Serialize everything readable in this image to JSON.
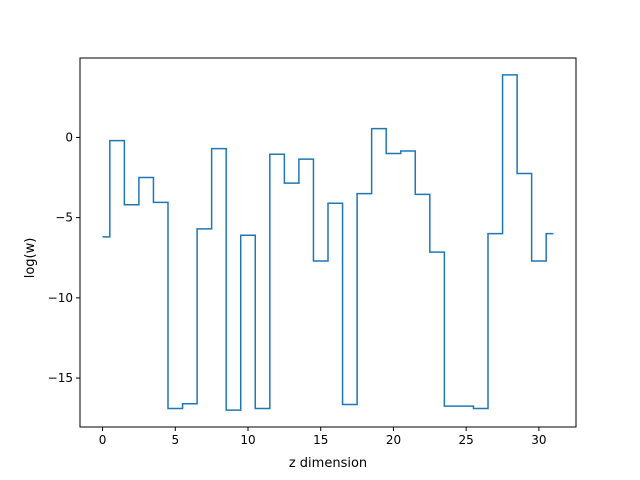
{
  "chart_data": {
    "type": "line",
    "step": "mid",
    "title": "",
    "xlabel": "z dimension",
    "ylabel": "log(w)",
    "xlim": [
      -1.55,
      32.55
    ],
    "ylim": [
      -18.05,
      4.95
    ],
    "xticks": [
      0,
      5,
      10,
      15,
      20,
      25,
      30
    ],
    "yticks": [
      -15,
      -10,
      -5,
      0
    ],
    "grid": false,
    "legend": "none",
    "series": [
      {
        "color": "#1f77b4",
        "x": [
          0,
          1,
          2,
          3,
          4,
          5,
          6,
          7,
          8,
          9,
          10,
          11,
          12,
          13,
          14,
          15,
          16,
          17,
          18,
          19,
          20,
          21,
          22,
          23,
          24,
          25,
          26,
          27,
          28,
          29,
          30,
          31
        ],
        "y": [
          -6.2,
          -0.2,
          -4.2,
          -2.5,
          -4.05,
          -16.9,
          -16.6,
          -5.7,
          -0.7,
          -17.0,
          -6.1,
          -16.9,
          -1.05,
          -2.85,
          -1.35,
          -7.7,
          -4.1,
          -16.65,
          -3.5,
          0.55,
          -1.0,
          -0.85,
          -3.55,
          -7.15,
          -16.75,
          -16.75,
          -16.9,
          -6.0,
          3.9,
          -2.25,
          -7.7,
          -6.0
        ]
      }
    ]
  }
}
